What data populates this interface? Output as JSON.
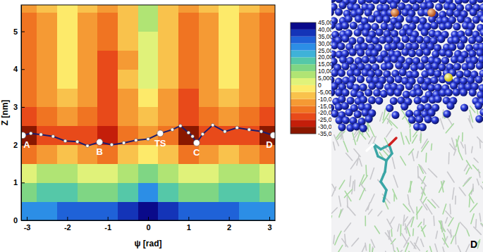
{
  "chart_data": {
    "type": "contour",
    "x_label": "ψ [rad]",
    "y_label": "Z [nm]",
    "xlim": [
      -3.14,
      3.14
    ],
    "xticks": [
      -3,
      -2,
      -1,
      0,
      1,
      2,
      3
    ],
    "ylim": [
      0,
      5.7
    ],
    "yticks": [
      0,
      1,
      2,
      3,
      4,
      5
    ],
    "x_edges": [
      -3.14,
      -2.75,
      -2.25,
      -1.75,
      -1.25,
      -0.75,
      -0.25,
      0.25,
      0.75,
      1.25,
      1.75,
      2.25,
      2.75,
      3.14
    ],
    "y_edges": [
      0,
      0.5,
      1,
      1.5,
      2,
      2.5,
      3,
      3.5,
      4,
      4.5,
      5,
      5.5,
      5.7
    ],
    "z": [
      [
        25,
        28,
        30,
        30,
        32,
        35,
        42,
        35,
        32,
        30,
        30,
        28,
        25
      ],
      [
        12,
        15,
        15,
        12,
        10,
        15,
        25,
        15,
        10,
        12,
        15,
        15,
        12
      ],
      [
        0,
        5,
        5,
        3,
        0,
        5,
        10,
        5,
        0,
        3,
        5,
        5,
        0
      ],
      [
        -20,
        -15,
        -10,
        -15,
        -20,
        -10,
        -5,
        -10,
        -20,
        -15,
        -10,
        -15,
        -20
      ],
      [
        -35,
        -25,
        -22,
        -25,
        -30,
        -20,
        -15,
        -20,
        -33,
        -25,
        -22,
        -25,
        -35
      ],
      [
        -25,
        -18,
        -12,
        -18,
        -25,
        -15,
        -8,
        -15,
        -25,
        -18,
        -12,
        -18,
        -25
      ],
      [
        -20,
        -15,
        -8,
        -15,
        -22,
        -12,
        -3,
        -12,
        -22,
        -15,
        -8,
        -15,
        -20
      ],
      [
        -20,
        -12,
        -5,
        -12,
        -22,
        -10,
        0,
        -10,
        -20,
        -12,
        -5,
        -12,
        -20
      ],
      [
        -20,
        -12,
        -5,
        -12,
        -25,
        -12,
        0,
        -10,
        -20,
        -12,
        -5,
        -12,
        -20
      ],
      [
        -18,
        -12,
        -5,
        -12,
        -20,
        -10,
        2,
        -10,
        -18,
        -12,
        -5,
        -12,
        -18
      ],
      [
        -18,
        -12,
        -5,
        -12,
        -18,
        -10,
        5,
        -10,
        -18,
        -12,
        -5,
        -12,
        -18
      ],
      [
        -15,
        -10,
        -3,
        -10,
        -15,
        -8,
        5,
        -8,
        -15,
        -10,
        -3,
        -10,
        -15
      ]
    ],
    "colorbar": {
      "range": [
        -35,
        45
      ],
      "ticks": [
        {
          "value": -35,
          "label": "-35,00"
        },
        {
          "value": -30,
          "label": "-30,00"
        },
        {
          "value": -25,
          "label": "-25,00"
        },
        {
          "value": -20,
          "label": "-20,00"
        },
        {
          "value": -15,
          "label": "-15,00"
        },
        {
          "value": -10,
          "label": "-10,00"
        },
        {
          "value": -5,
          "label": "-5,000"
        },
        0,
        {
          "value": 5,
          "label": "5,000"
        },
        {
          "value": 10,
          "label": "10,00"
        },
        {
          "value": 15,
          "label": "15,00"
        },
        {
          "value": 20,
          "label": "20,00"
        },
        {
          "value": 25,
          "label": "25,00"
        },
        {
          "value": 30,
          "label": "30,00"
        },
        {
          "value": 35,
          "label": "35,00"
        },
        {
          "value": 40,
          "label": "40,00"
        },
        {
          "value": 45,
          "label": "45,00"
        }
      ],
      "colors": [
        "#8a1800",
        "#c41e0a",
        "#e84a1a",
        "#f07422",
        "#f59a34",
        "#f9c24c",
        "#fdea6a",
        "#e0f27a",
        "#b0e474",
        "#7fd684",
        "#55c8a8",
        "#3fb2d8",
        "#2c8ee6",
        "#1f62d8",
        "#1434b8",
        "#0a0a8a"
      ]
    },
    "path": {
      "x": [
        -3.1,
        -2.9,
        -2.65,
        -2.35,
        -2.05,
        -1.75,
        -1.5,
        -1.2,
        -0.9,
        -0.6,
        -0.3,
        0,
        0.3,
        0.6,
        0.8,
        1.0,
        1.1,
        1.2,
        1.35,
        1.6,
        1.9,
        2.2,
        2.5,
        2.8,
        3.1
      ],
      "y": [
        2.25,
        2.3,
        2.27,
        2.22,
        2.1,
        2.08,
        1.97,
        2.07,
        2.0,
        2.05,
        2.12,
        2.15,
        2.3,
        2.4,
        2.5,
        2.32,
        2.22,
        2.05,
        2.28,
        2.52,
        2.35,
        2.45,
        2.4,
        2.35,
        2.25
      ],
      "labels": [
        "A",
        null,
        null,
        null,
        null,
        null,
        null,
        "B",
        null,
        null,
        null,
        null,
        "TS",
        null,
        null,
        null,
        null,
        "C",
        null,
        null,
        null,
        null,
        null,
        null,
        "D"
      ],
      "color": "#1c1c6e"
    }
  },
  "panel": {
    "label": "D"
  }
}
